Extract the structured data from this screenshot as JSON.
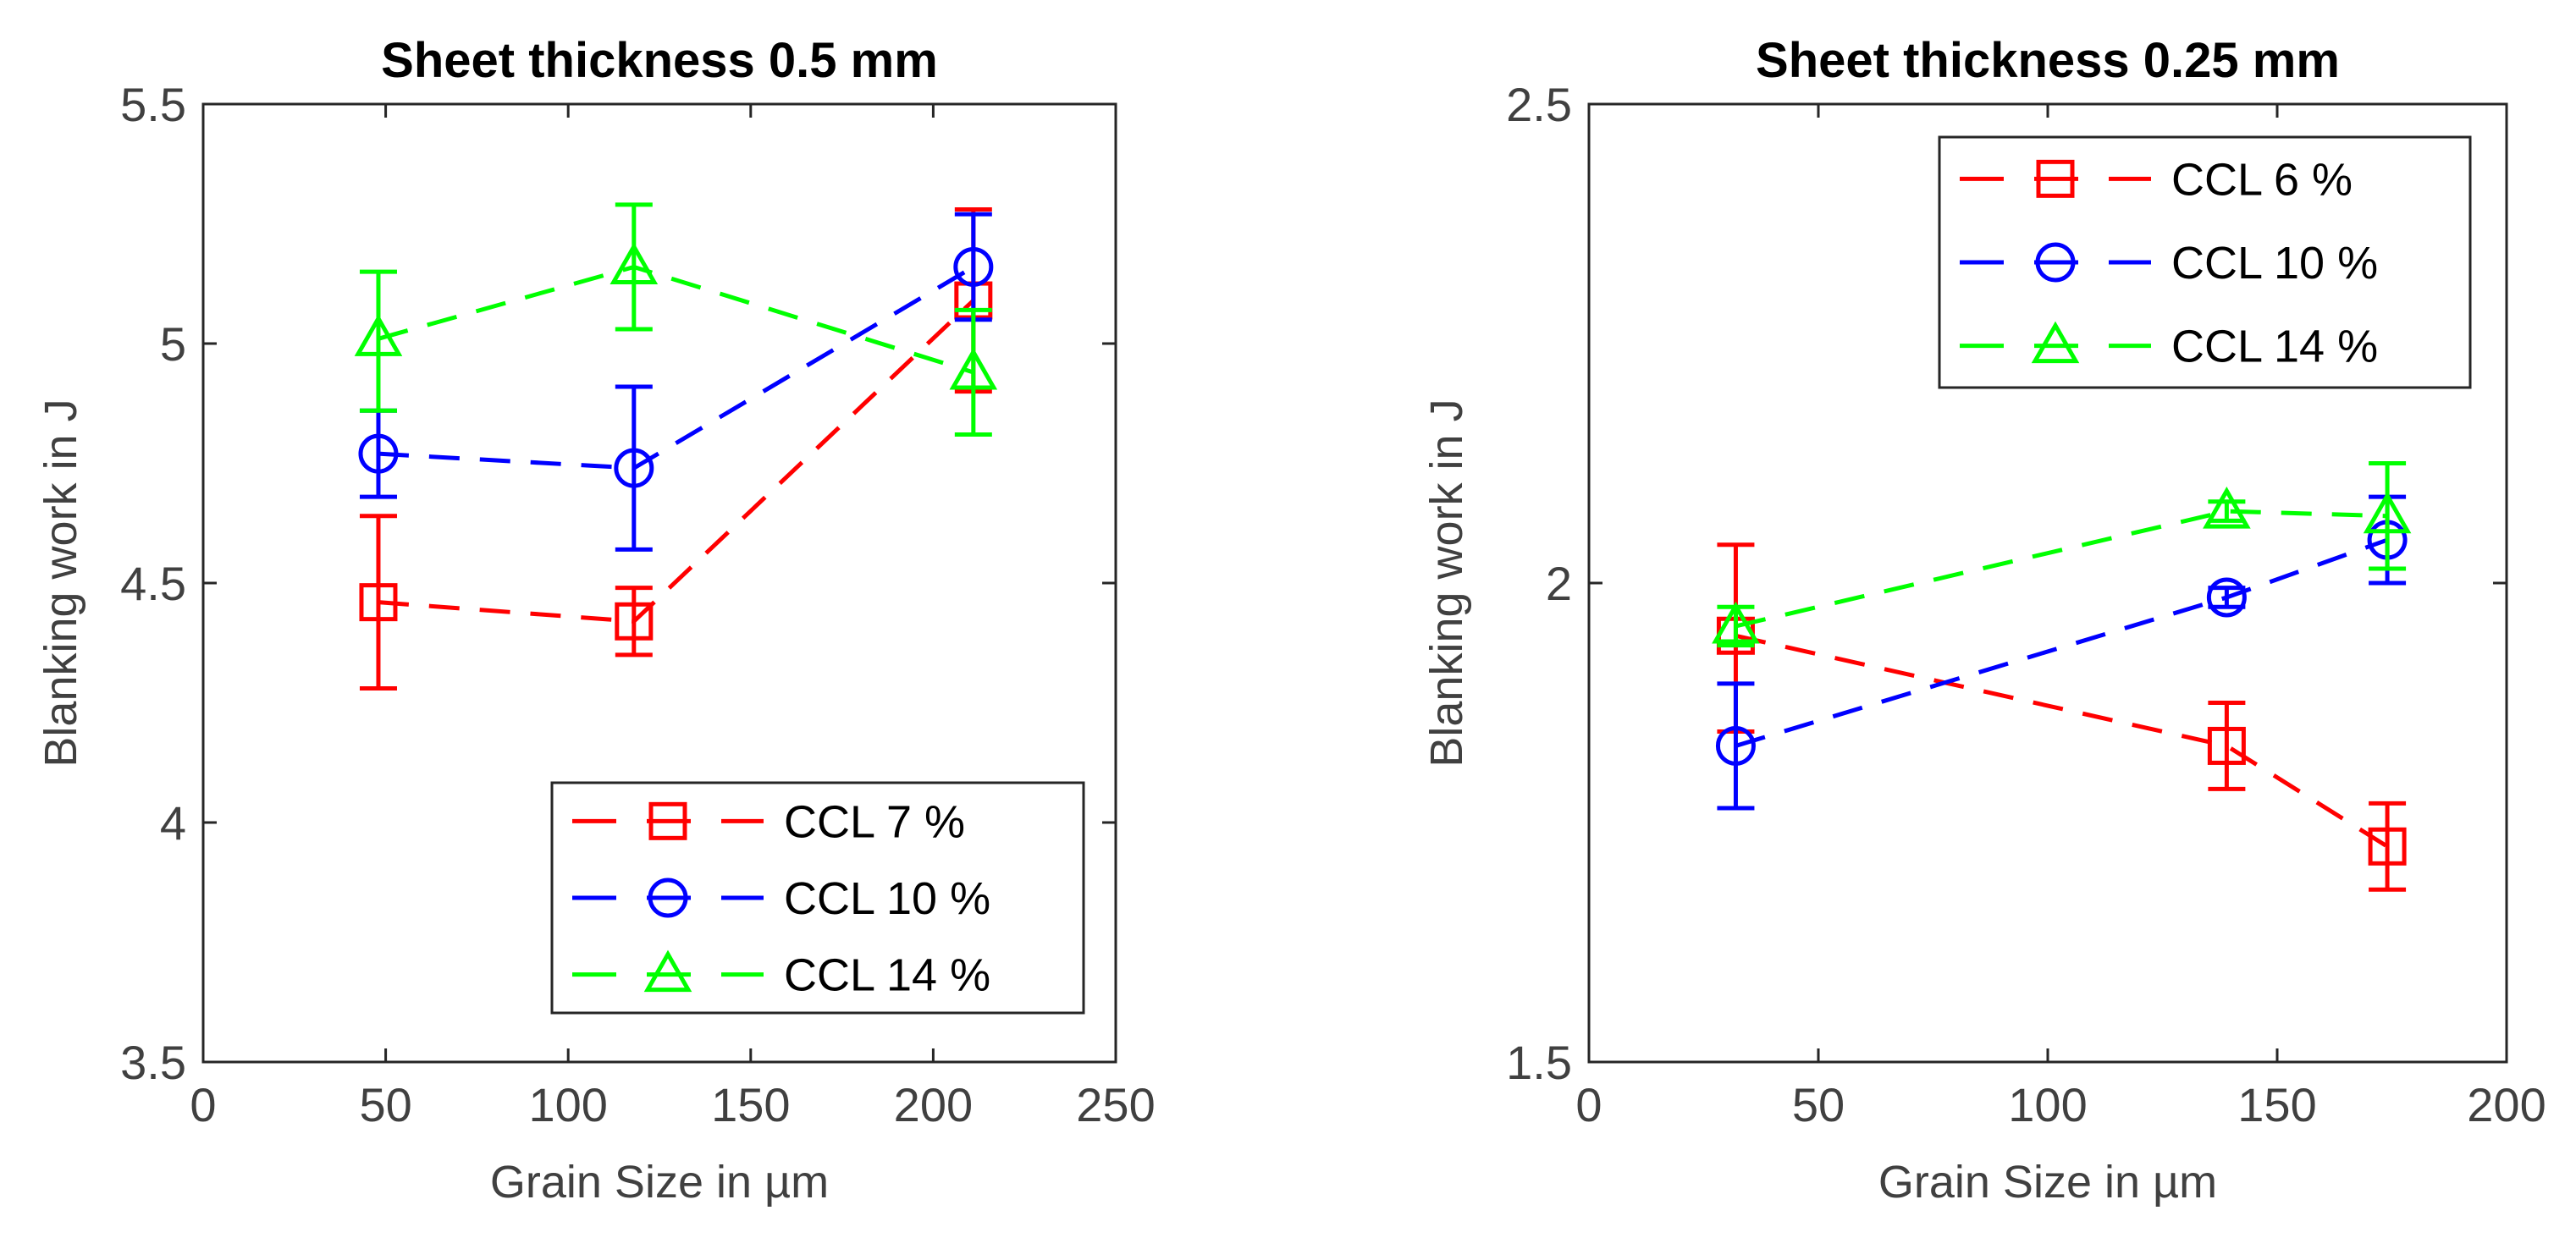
{
  "chart_data": [
    {
      "type": "line",
      "title": "Sheet thickness 0.5 mm",
      "xlabel": "Grain Size in µm",
      "ylabel": "Blanking work in J",
      "xlim": [
        0,
        250
      ],
      "ylim": [
        3.5,
        5.5
      ],
      "xticks": [
        0,
        50,
        100,
        150,
        200,
        250
      ],
      "yticks": [
        3.5,
        4,
        4.5,
        5,
        5.5
      ],
      "xtick_labels": [
        "0",
        "50",
        "100",
        "150",
        "200",
        "250"
      ],
      "ytick_labels": [
        "3.5",
        "4",
        "4.5",
        "5",
        "5.5"
      ],
      "legend_position": "bottom-right",
      "series": [
        {
          "name": "CCL 7 %",
          "color": "#ff0000",
          "marker": "square",
          "x": [
            48,
            118,
            211
          ],
          "y": [
            4.46,
            4.42,
            5.09
          ],
          "err_low": [
            0.18,
            0.07,
            0.19
          ],
          "err_high": [
            0.18,
            0.07,
            0.19
          ]
        },
        {
          "name": "CCL 10 %",
          "color": "#0000ff",
          "marker": "circle",
          "x": [
            48,
            118,
            211
          ],
          "y": [
            4.77,
            4.74,
            5.16
          ],
          "err_low": [
            0.09,
            0.17,
            0.11
          ],
          "err_high": [
            0.09,
            0.17,
            0.11
          ]
        },
        {
          "name": "CCL 14 %",
          "color": "#00ff00",
          "marker": "triangle",
          "x": [
            48,
            118,
            211
          ],
          "y": [
            5.01,
            5.16,
            4.94
          ],
          "err_low": [
            0.15,
            0.13,
            0.13
          ],
          "err_high": [
            0.14,
            0.13,
            0.13
          ]
        }
      ]
    },
    {
      "type": "line",
      "title": "Sheet thickness 0.25 mm",
      "xlabel": "Grain Size in µm",
      "ylabel": "Blanking work in J",
      "xlim": [
        0,
        200
      ],
      "ylim": [
        1.5,
        2.5
      ],
      "xticks": [
        0,
        50,
        100,
        150,
        200
      ],
      "yticks": [
        1.5,
        2,
        2.5
      ],
      "xtick_labels": [
        "0",
        "50",
        "100",
        "150",
        "200"
      ],
      "ytick_labels": [
        "1.5",
        "2",
        "2.5"
      ],
      "legend_position": "top-right",
      "series": [
        {
          "name": "CCL 6 %",
          "color": "#ff0000",
          "marker": "square",
          "x": [
            32,
            139,
            174
          ],
          "y": [
            1.945,
            1.83,
            1.725
          ],
          "err_low": [
            0.1,
            0.045,
            0.045
          ],
          "err_high": [
            0.095,
            0.045,
            0.045
          ]
        },
        {
          "name": "CCL 10 %",
          "color": "#0000ff",
          "marker": "circle",
          "x": [
            32,
            139,
            174
          ],
          "y": [
            1.83,
            1.985,
            2.045
          ],
          "err_low": [
            0.065,
            0.01,
            0.045
          ],
          "err_high": [
            0.065,
            0.01,
            0.045
          ]
        },
        {
          "name": "CCL 14 %",
          "color": "#00ff00",
          "marker": "triangle",
          "x": [
            32,
            139,
            174
          ],
          "y": [
            1.955,
            2.075,
            2.07
          ],
          "err_low": [
            0.02,
            0.01,
            0.055
          ],
          "err_high": [
            0.02,
            0.01,
            0.055
          ]
        }
      ]
    }
  ]
}
